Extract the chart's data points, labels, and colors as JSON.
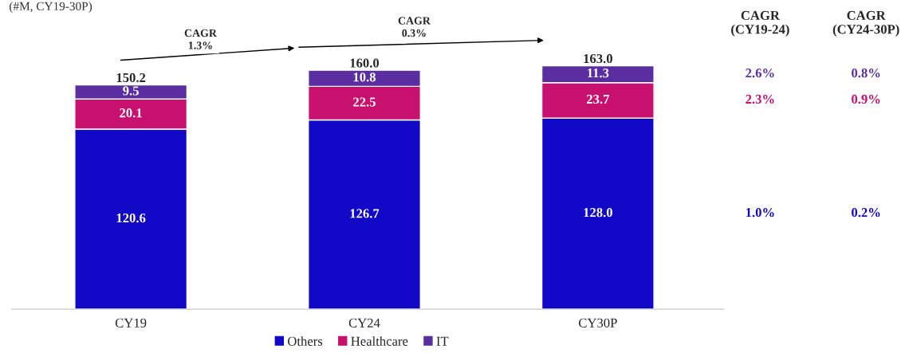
{
  "chart_data": {
    "type": "bar",
    "title": "(#M, CY19-30P)",
    "categories": [
      "CY19",
      "CY24",
      "CY30P"
    ],
    "stacked": true,
    "legend": "bottom",
    "grid": false,
    "series": [
      {
        "name": "Others",
        "color": "#1208c8",
        "values": [
          120.6,
          126.7,
          128.0
        ],
        "value_labels": [
          "120.6",
          "126.7",
          "128.0"
        ]
      },
      {
        "name": "Healthcare",
        "color": "#c8106e",
        "values": [
          20.1,
          22.5,
          23.7
        ],
        "value_labels": [
          "20.1",
          "22.5",
          "23.7"
        ]
      },
      {
        "name": "IT",
        "color": "#5a2ea0",
        "values": [
          9.5,
          10.8,
          11.3
        ],
        "value_labels": [
          "9.5",
          "10.8",
          "11.3"
        ]
      }
    ],
    "totals": [
      "150.2",
      "160.0",
      "163.0"
    ],
    "annotations": [
      "CAGR\n1.3%",
      "CAGR\n0.3%",
      "CAGR\n(CY19-24)",
      "CAGR\n(CY24-30P)",
      "2.6%",
      "2.3%",
      "1.0%",
      "0.8%",
      "0.9%",
      "0.2%"
    ]
  }
}
